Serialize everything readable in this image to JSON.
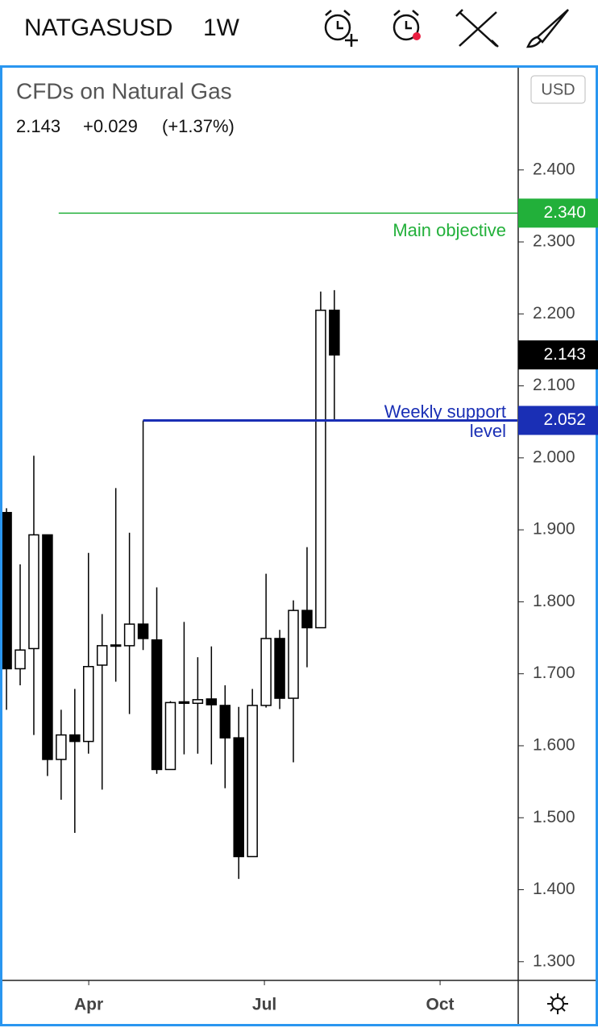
{
  "header": {
    "symbol": "NATGASUSD",
    "interval": "1W"
  },
  "chart_data": {
    "type": "candlestick",
    "title": "CFDs on Natural Gas",
    "quote": {
      "last": "2.143",
      "change": "+0.029",
      "change_pct": "(+1.37%)"
    },
    "currency": "USD",
    "categories": [
      null,
      null,
      null,
      null,
      null,
      null,
      null,
      null,
      null,
      null,
      null,
      null,
      null,
      null,
      null,
      null,
      null,
      null,
      null,
      null,
      null,
      null,
      null,
      null,
      null
    ],
    "open": [
      1.924,
      1.707,
      1.735,
      1.893,
      1.581,
      1.615,
      1.606,
      1.712,
      1.739,
      1.739,
      1.769,
      1.747,
      1.567,
      1.661,
      1.659,
      1.665,
      1.656,
      1.611,
      1.446,
      1.656,
      1.749,
      1.666,
      1.788,
      1.764,
      2.205
    ],
    "high": [
      1.93,
      1.852,
      2.003,
      1.893,
      1.65,
      1.679,
      1.868,
      1.783,
      1.958,
      1.896,
      2.052,
      1.82,
      1.662,
      1.772,
      1.723,
      1.738,
      1.684,
      1.654,
      1.679,
      1.839,
      1.761,
      1.802,
      1.876,
      2.231,
      2.233
    ],
    "low": [
      1.65,
      1.684,
      1.615,
      1.558,
      1.525,
      1.479,
      1.589,
      1.539,
      1.689,
      1.644,
      1.733,
      1.561,
      1.567,
      1.588,
      1.589,
      1.574,
      1.541,
      1.415,
      1.446,
      1.653,
      1.651,
      1.577,
      1.709,
      1.764,
      2.052
    ],
    "close": [
      1.707,
      1.733,
      1.893,
      1.581,
      1.615,
      1.606,
      1.71,
      1.739,
      1.74,
      1.769,
      1.749,
      1.567,
      1.66,
      1.659,
      1.664,
      1.657,
      1.611,
      1.446,
      1.656,
      1.749,
      1.666,
      1.788,
      1.764,
      2.205,
      2.143
    ],
    "up_color": "#ffffff",
    "down_color": "#000000",
    "xlim": [
      -0.24,
      37.4
    ],
    "xticks": [
      {
        "value": 6.02,
        "label": "Apr"
      },
      {
        "value": 18.88,
        "label": "Jul"
      },
      {
        "value": 31.74,
        "label": "Oct"
      }
    ],
    "ylim": [
      1.274,
      2.542
    ],
    "yticks": [
      {
        "value": 1.3,
        "label": "1.300"
      },
      {
        "value": 1.4,
        "label": "1.400"
      },
      {
        "value": 1.5,
        "label": "1.500"
      },
      {
        "value": 1.6,
        "label": "1.600"
      },
      {
        "value": 1.7,
        "label": "1.700"
      },
      {
        "value": 1.8,
        "label": "1.800"
      },
      {
        "value": 1.9,
        "label": "1.900"
      },
      {
        "value": 2.0,
        "label": "2.000"
      },
      {
        "value": 2.1,
        "label": "2.100"
      },
      {
        "value": 2.2,
        "label": "2.200"
      },
      {
        "value": 2.3,
        "label": "2.300"
      },
      {
        "value": 2.4,
        "label": "2.400"
      }
    ],
    "horizontal_lines": [
      {
        "name": "Main objective",
        "value": 2.34,
        "label": "2.340",
        "color": "#22b03a",
        "start": 3.82
      },
      {
        "name": "Weekly support level",
        "value": 2.052,
        "label": "2.052",
        "color": "#1a2fb5",
        "start": 10
      }
    ],
    "last_price": {
      "value": 2.143,
      "label": "2.143",
      "color": "#000000"
    }
  }
}
